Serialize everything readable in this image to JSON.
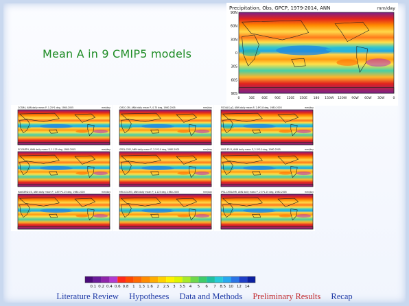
{
  "slide": {
    "headline": "Mean A in 9 CMIP5 models",
    "nav": [
      {
        "label": "Literature Review",
        "active": false
      },
      {
        "label": "Hypotheses",
        "active": false
      },
      {
        "label": "Data and Methods",
        "active": false
      },
      {
        "label": "Preliminary Results",
        "active": true
      },
      {
        "label": "Recap",
        "active": false
      }
    ]
  },
  "obs_map": {
    "title": "Precipitation, Obs, GPCP, 1979-2014, ANN",
    "units": "mm/day",
    "lat_labels": [
      "90N",
      "60N",
      "30N",
      "0",
      "30S",
      "60S",
      "90S"
    ],
    "lon_labels": [
      "0",
      "30E",
      "60E",
      "90E",
      "120E",
      "150E",
      "180",
      "150W",
      "120W",
      "90W",
      "60W",
      "30W",
      "0"
    ]
  },
  "model_panels": [
    {
      "title": "CCSM4, ANN daily mean P, 1.25*1 deg, 1980-2005",
      "units": "mm/day"
    },
    {
      "title": "CMCC-CM, ANN daily mean P, 0.75 deg, 1980-2005",
      "units": "mm/day"
    },
    {
      "title": "FGOALS-g2, ANN daily mean P, 2.8*2.8 deg, 1980-2005",
      "units": "mm/day"
    },
    {
      "title": "EC-EARTH, ANN daily mean P, 1.125 deg, 1980-2005",
      "units": "mm/day"
    },
    {
      "title": "GFDL-CM3, ANN daily mean P, 2.5*2.0 deg, 1980-2005",
      "units": "mm/day"
    },
    {
      "title": "GISS-E2-R, ANN daily mean P, 2.5*2.0 deg, 1980-2005",
      "units": "mm/day"
    },
    {
      "title": "HadGEM2-ES, ANN daily mean P, 1.875*1.25 deg, 1980-2005",
      "units": "mm/day"
    },
    {
      "title": "MRI-CGCM3, ANN daily mean P, 1.125 deg, 1980-2005",
      "units": "mm/day"
    },
    {
      "title": "IPSL-CM5A-MR, ANN daily mean P, 2.5*1.25 deg, 1980-2005",
      "units": "mm/day"
    }
  ],
  "colorbar": {
    "labels": [
      "0.1",
      "0.2",
      "0.4",
      "0.6",
      "0.8",
      "1",
      "1.3",
      "1.6",
      "2",
      "2.5",
      "3",
      "3.5",
      "4",
      "5",
      "6",
      "7",
      "8.5",
      "10",
      "12",
      "14"
    ],
    "colors": [
      "#4b0a7a",
      "#6a1b9a",
      "#8e24aa",
      "#b23bd0",
      "#ff2a1a",
      "#ff4a00",
      "#ff6a00",
      "#ff8c00",
      "#ffad00",
      "#ffd200",
      "#fff200",
      "#dff500",
      "#a8ea2a",
      "#6fd84a",
      "#3ecb6a",
      "#20bfa0",
      "#26c9d8",
      "#27a8ef",
      "#2a74e6",
      "#1f3fc8",
      "#0b1fa0"
    ]
  }
}
